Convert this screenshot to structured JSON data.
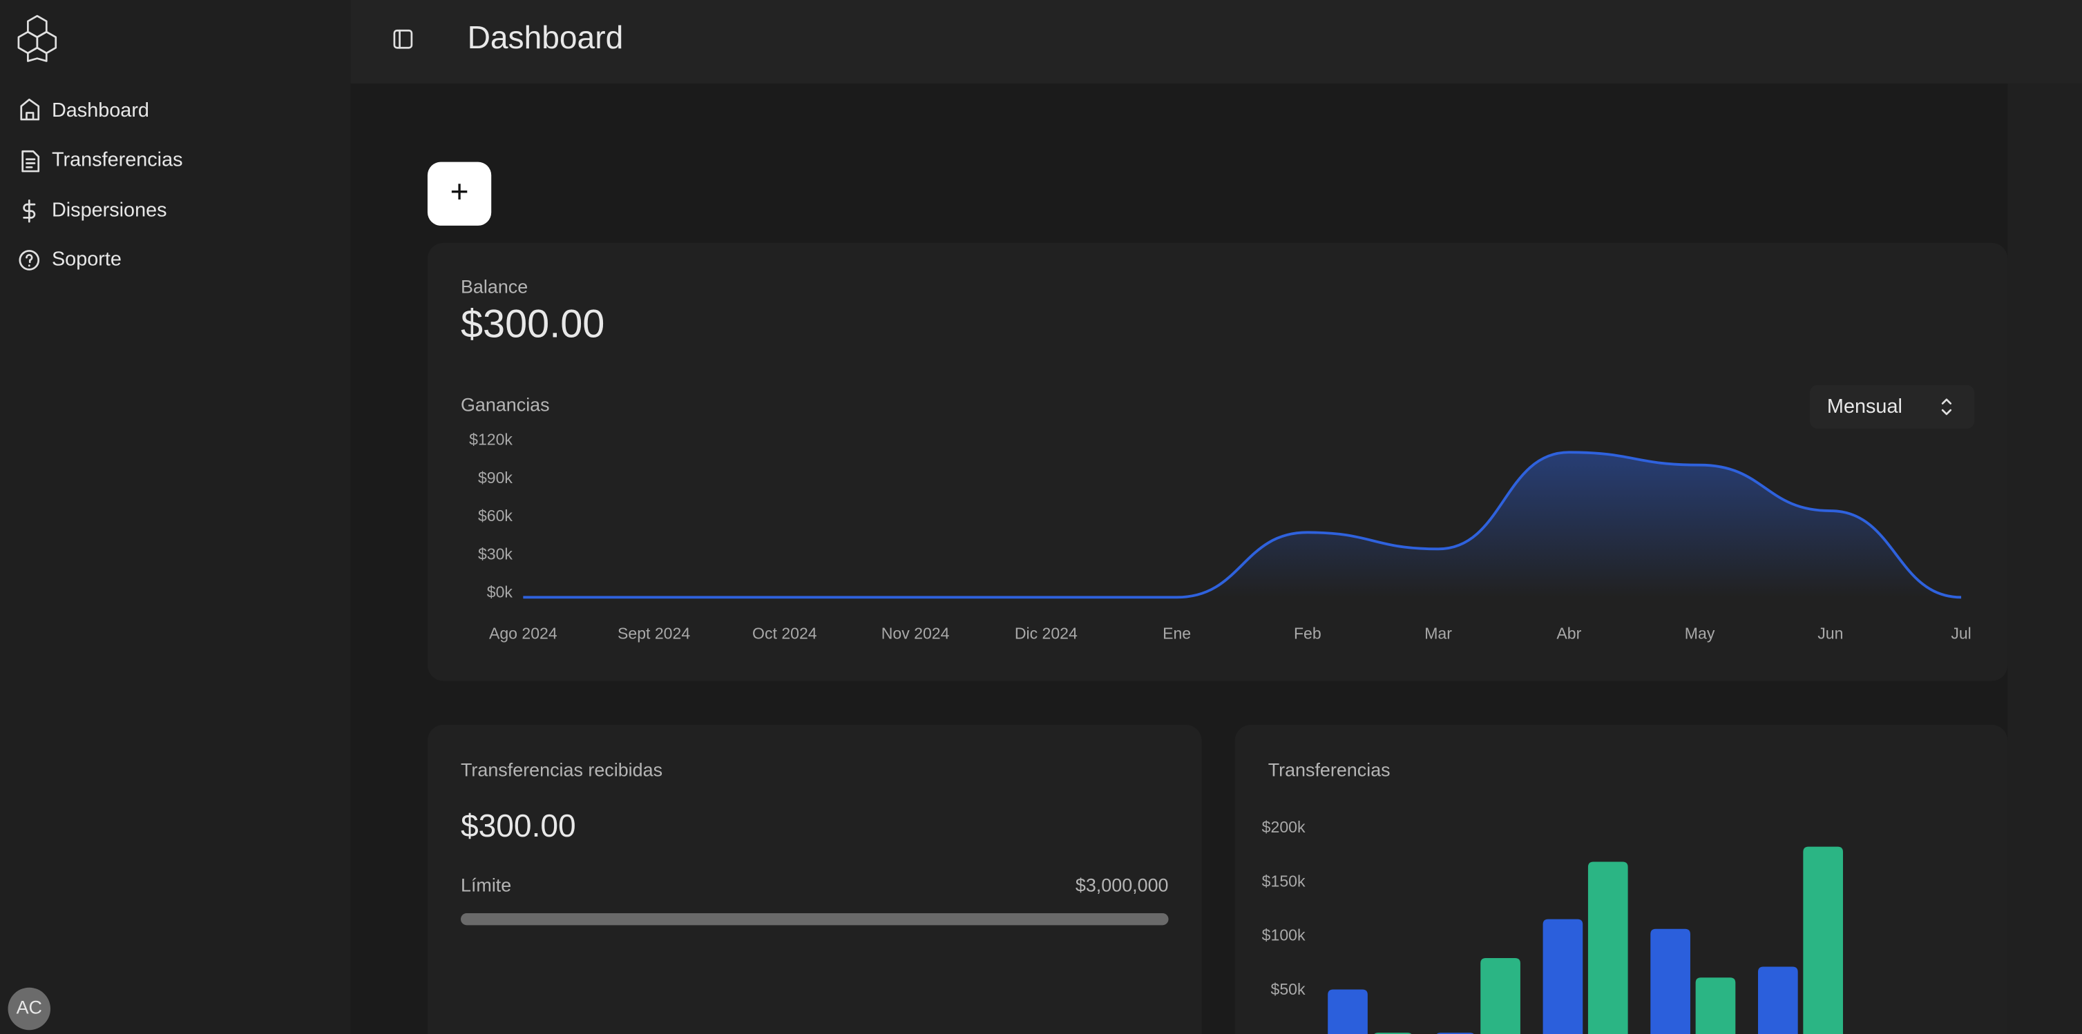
{
  "sidebar": {
    "nav": [
      "Dashboard",
      "Transferencias",
      "Dispersiones",
      "Soporte"
    ],
    "avatar": "AC"
  },
  "header": {
    "title": "Dashboard",
    "add_button": "+"
  },
  "balance": {
    "label": "Balance",
    "amount": "$300.00"
  },
  "earnings_chart": {
    "type": "area",
    "title": "Ganancias",
    "period": "Mensual",
    "categories": [
      "Ago 2024",
      "Sept 2024",
      "Oct 2024",
      "Nov 2024",
      "Dic 2024",
      "Ene",
      "Feb",
      "Mar",
      "Abr",
      "May",
      "Jun",
      "Jul"
    ],
    "values": [
      0,
      0,
      0,
      0,
      0,
      0,
      51000,
      38000,
      114000,
      104000,
      68000,
      0
    ],
    "color": "#2f62dd",
    "ylim": [
      0,
      120000
    ],
    "yticks": [
      {
        "value": 0,
        "label": "$0k"
      },
      {
        "value": 30000,
        "label": "$30k"
      },
      {
        "value": 60000,
        "label": "$60k"
      },
      {
        "value": 90000,
        "label": "$90k"
      },
      {
        "value": 120000,
        "label": "$120k"
      }
    ]
  },
  "received": {
    "title": "Transferencias recibidas",
    "amount": "$300.00",
    "limit_label": "Límite",
    "limit": "$3,000,000"
  },
  "transfers_chart": {
    "type": "bar",
    "title": "Transferencias",
    "series": [
      {
        "color": "#2b5fdc",
        "values": [
          51000,
          11000,
          116000,
          107000,
          72000
        ]
      },
      {
        "color": "#2bb584",
        "values": [
          11000,
          80000,
          169000,
          62000,
          183000
        ]
      }
    ],
    "ylim": [
      0,
      200000
    ],
    "yticks": [
      {
        "value": 50000,
        "label": "$50k"
      },
      {
        "value": 100000,
        "label": "$100k"
      },
      {
        "value": 150000,
        "label": "$150k"
      },
      {
        "value": 200000,
        "label": "$200k"
      }
    ]
  }
}
